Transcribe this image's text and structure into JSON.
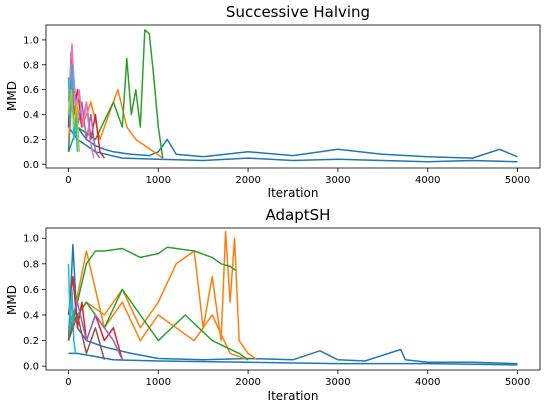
{
  "chart_data": [
    {
      "type": "line",
      "title": "Successive Halving",
      "xlabel": "Iteration",
      "ylabel": "MMD",
      "xlim": [
        -250,
        5250
      ],
      "ylim": [
        -0.03,
        1.12
      ],
      "xticks": [
        0,
        1000,
        2000,
        3000,
        4000,
        5000
      ],
      "yticks": [
        0.0,
        0.2,
        0.4,
        0.6,
        0.8,
        1.0
      ],
      "xtick_labels": [
        "0",
        "1000",
        "2000",
        "3000",
        "4000",
        "5000"
      ],
      "ytick_labels": [
        "0.0",
        "0.2",
        "0.4",
        "0.6",
        "0.8",
        "1.0"
      ],
      "grid": false,
      "legend": "none",
      "series": [
        {
          "color": "#1f77b4",
          "x": [
            0,
            50,
            100,
            200,
            300,
            400,
            500,
            700,
            900,
            1000,
            1100,
            1200,
            1500,
            2000,
            2500,
            3000,
            3500,
            4000,
            4500,
            4800,
            5000
          ],
          "y": [
            0.1,
            0.75,
            0.3,
            0.2,
            0.15,
            0.12,
            0.1,
            0.08,
            0.07,
            0.1,
            0.2,
            0.08,
            0.06,
            0.1,
            0.07,
            0.12,
            0.08,
            0.06,
            0.05,
            0.12,
            0.06
          ]
        },
        {
          "color": "#1f77b4",
          "x": [
            0,
            100,
            300,
            600,
            1000,
            1500,
            2000,
            2500,
            3000,
            3500,
            4000,
            4500,
            5000
          ],
          "y": [
            0.3,
            0.2,
            0.1,
            0.05,
            0.04,
            0.03,
            0.05,
            0.03,
            0.04,
            0.03,
            0.02,
            0.03,
            0.02
          ]
        },
        {
          "color": "#ff7f0e",
          "x": [
            0,
            50,
            150,
            250,
            350,
            450,
            550,
            650,
            750,
            850,
            950,
            1050
          ],
          "y": [
            0.2,
            0.6,
            0.3,
            0.5,
            0.2,
            0.4,
            0.6,
            0.3,
            0.2,
            0.15,
            0.1,
            0.05
          ]
        },
        {
          "color": "#2ca02c",
          "x": [
            0,
            100,
            300,
            500,
            600,
            650,
            700,
            750,
            800,
            850,
            900,
            950,
            1000,
            1050
          ],
          "y": [
            0.1,
            0.3,
            0.2,
            0.5,
            0.3,
            0.85,
            0.4,
            0.6,
            0.3,
            1.08,
            1.05,
            0.7,
            0.3,
            0.05
          ]
        },
        {
          "color": "#d62728",
          "x": [
            0,
            30,
            60,
            100,
            150,
            200,
            250,
            300,
            350,
            400
          ],
          "y": [
            0.3,
            0.9,
            0.4,
            0.6,
            0.3,
            0.5,
            0.2,
            0.4,
            0.1,
            0.05
          ]
        },
        {
          "color": "#9467bd",
          "x": [
            0,
            50,
            100,
            150,
            200,
            250,
            300,
            350
          ],
          "y": [
            0.4,
            0.8,
            0.3,
            0.5,
            0.2,
            0.4,
            0.1,
            0.05
          ]
        },
        {
          "color": "#e377c2",
          "x": [
            0,
            40,
            80,
            120,
            160,
            200,
            240,
            280
          ],
          "y": [
            0.5,
            0.97,
            0.4,
            0.6,
            0.3,
            0.5,
            0.2,
            0.05
          ]
        },
        {
          "color": "#17becf",
          "x": [
            0,
            20,
            40,
            60,
            80,
            100
          ],
          "y": [
            0.7,
            0.3,
            0.8,
            0.2,
            0.4,
            0.1
          ]
        },
        {
          "color": "#bcbd22",
          "x": [
            0,
            30,
            60,
            90,
            120
          ],
          "y": [
            0.4,
            0.6,
            0.3,
            0.5,
            0.1
          ]
        }
      ]
    },
    {
      "type": "line",
      "title": "AdaptSH",
      "xlabel": "Iteration",
      "ylabel": "MMD",
      "xlim": [
        -250,
        5250
      ],
      "ylim": [
        -0.03,
        1.08
      ],
      "xticks": [
        0,
        1000,
        2000,
        3000,
        4000,
        5000
      ],
      "yticks": [
        0.0,
        0.2,
        0.4,
        0.6,
        0.8,
        1.0
      ],
      "xtick_labels": [
        "0",
        "1000",
        "2000",
        "3000",
        "4000",
        "5000"
      ],
      "ytick_labels": [
        "0.0",
        "0.2",
        "0.4",
        "0.6",
        "0.8",
        "1.0"
      ],
      "grid": false,
      "legend": "none",
      "series": [
        {
          "color": "#1f77b4",
          "x": [
            0,
            50,
            100,
            200,
            400,
            700,
            1000,
            1500,
            2000,
            2500,
            2800,
            3000,
            3300,
            3700,
            3750,
            4000,
            4500,
            5000
          ],
          "y": [
            0.2,
            0.95,
            0.3,
            0.2,
            0.15,
            0.1,
            0.06,
            0.05,
            0.06,
            0.05,
            0.12,
            0.05,
            0.04,
            0.13,
            0.05,
            0.03,
            0.03,
            0.02
          ]
        },
        {
          "color": "#1f77b4",
          "x": [
            0,
            100,
            500,
            1000,
            2000,
            3000,
            4000,
            5000
          ],
          "y": [
            0.1,
            0.1,
            0.05,
            0.04,
            0.03,
            0.02,
            0.02,
            0.01
          ]
        },
        {
          "color": "#ff7f0e",
          "x": [
            0,
            200,
            400,
            600,
            800,
            1000,
            1200,
            1400,
            1500,
            1600,
            1700,
            1750,
            1800,
            1850,
            1900,
            2000,
            2100
          ],
          "y": [
            0.3,
            0.5,
            0.4,
            0.6,
            0.3,
            0.5,
            0.8,
            0.9,
            0.3,
            0.7,
            0.2,
            1.05,
            0.5,
            1.0,
            0.2,
            0.1,
            0.05
          ]
        },
        {
          "color": "#ff7f0e",
          "x": [
            0,
            200,
            400,
            600,
            800,
            1000,
            1200,
            1400,
            1600,
            1800,
            2000
          ],
          "y": [
            0.2,
            0.9,
            0.3,
            0.5,
            0.2,
            0.4,
            0.3,
            0.2,
            0.4,
            0.1,
            0.05
          ]
        },
        {
          "color": "#2ca02c",
          "x": [
            0,
            100,
            200,
            300,
            400,
            600,
            800,
            1000,
            1100,
            1200,
            1400,
            1600,
            1700,
            1800,
            1860
          ],
          "y": [
            0.2,
            0.5,
            0.8,
            0.9,
            0.9,
            0.92,
            0.85,
            0.88,
            0.93,
            0.92,
            0.9,
            0.85,
            0.8,
            0.78,
            0.75
          ]
        },
        {
          "color": "#2ca02c",
          "x": [
            0,
            200,
            400,
            600,
            800,
            1000,
            1300,
            1600,
            1900,
            2000
          ],
          "y": [
            0.3,
            0.5,
            0.3,
            0.6,
            0.4,
            0.2,
            0.4,
            0.2,
            0.1,
            0.05
          ]
        },
        {
          "color": "#d62728",
          "x": [
            0,
            50,
            100,
            150,
            200,
            300,
            400,
            500,
            600
          ],
          "y": [
            0.4,
            0.7,
            0.3,
            0.5,
            0.2,
            0.4,
            0.2,
            0.3,
            0.05
          ]
        },
        {
          "color": "#9467bd",
          "x": [
            0,
            100,
            200,
            300,
            400,
            500,
            600
          ],
          "y": [
            0.3,
            0.5,
            0.2,
            0.4,
            0.3,
            0.2,
            0.05
          ]
        },
        {
          "color": "#17becf",
          "x": [
            0,
            20,
            40,
            60,
            80
          ],
          "y": [
            0.8,
            0.3,
            0.6,
            0.2,
            0.1
          ]
        },
        {
          "color": "#8c564b",
          "x": [
            0,
            100,
            200,
            300,
            400
          ],
          "y": [
            0.2,
            0.4,
            0.1,
            0.3,
            0.05
          ]
        }
      ]
    }
  ]
}
